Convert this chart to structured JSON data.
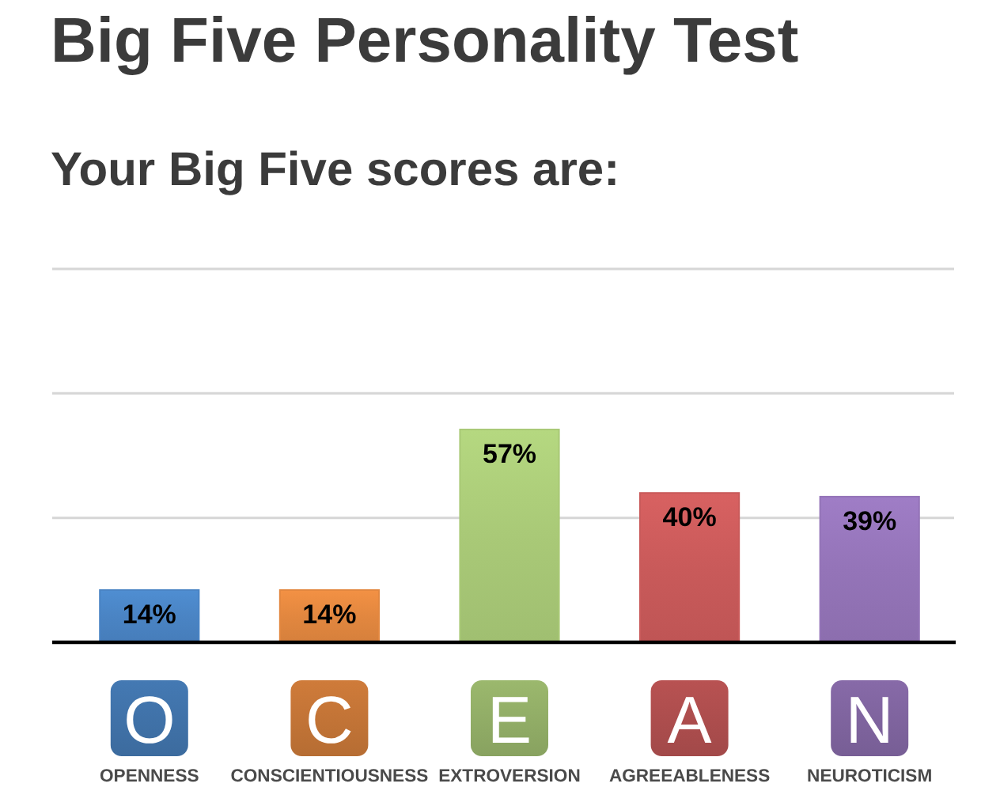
{
  "chart_data": {
    "type": "bar",
    "title": "Big Five Personality Test",
    "subtitle": "Your Big Five scores are:",
    "categories": [
      "OPENNESS",
      "CONSCIENTIOUSNESS",
      "EXTROVERSION",
      "AGREEABLENESS",
      "NEUROTICISM"
    ],
    "values": [
      14,
      14,
      57,
      40,
      39
    ],
    "colors": [
      "#4a84c4",
      "#e2873f",
      "#a9c977",
      "#c95a5a",
      "#9474b8"
    ],
    "value_labels": [
      "14%",
      "14%",
      "57%",
      "40%",
      "39%"
    ],
    "ylim": [
      0,
      100
    ],
    "yticks": [
      {
        "value": 33.3,
        "label": null
      },
      {
        "value": 66.7,
        "label": null
      },
      {
        "value": 100,
        "label": null
      }
    ],
    "grid": "y",
    "tick_labels": "x",
    "annotations": [
      "O",
      "C",
      "E",
      "A",
      "N"
    ]
  }
}
